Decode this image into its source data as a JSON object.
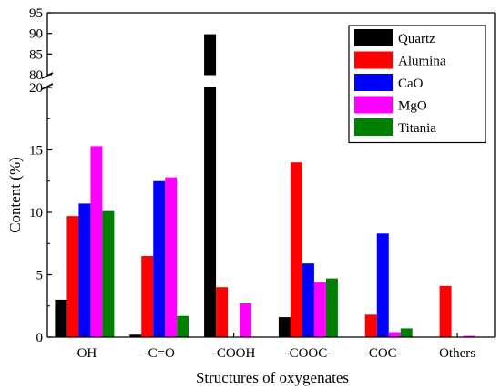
{
  "chart_data": {
    "type": "bar",
    "xlabel": "Structures of oxygenates",
    "ylabel": "Content (%)",
    "y_axis_break": {
      "lower_range": [
        0,
        20
      ],
      "upper_range": [
        80,
        95
      ]
    },
    "lower_ticks": [
      0,
      5,
      10,
      15,
      20
    ],
    "upper_ticks": [
      80,
      85,
      90,
      95
    ],
    "legend_position": "top-right",
    "categories": [
      "-OH",
      "-C=O",
      "-COOH",
      "-COOC-",
      "-COC-",
      "Others"
    ],
    "series": [
      {
        "name": "Quartz",
        "color": "#000000",
        "values": [
          3.0,
          0.2,
          89.8,
          1.6,
          0,
          0
        ]
      },
      {
        "name": "Alumina",
        "color": "#ff0000",
        "values": [
          9.7,
          6.5,
          4.0,
          14.0,
          1.8,
          4.1
        ]
      },
      {
        "name": "CaO",
        "color": "#0000ff",
        "values": [
          10.7,
          12.5,
          0,
          5.9,
          8.3,
          0
        ]
      },
      {
        "name": "MgO",
        "color": "#ff00ff",
        "values": [
          15.3,
          12.8,
          2.7,
          4.4,
          0.4,
          0.1
        ]
      },
      {
        "name": "Titania",
        "color": "#008000",
        "values": [
          10.1,
          1.7,
          0,
          4.7,
          0.7,
          0
        ]
      }
    ]
  }
}
